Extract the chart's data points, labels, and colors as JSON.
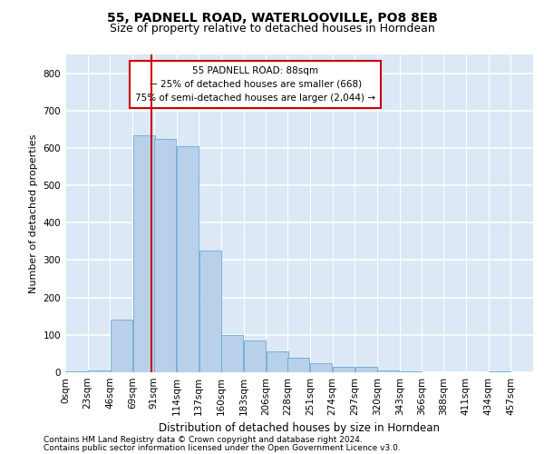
{
  "title1": "55, PADNELL ROAD, WATERLOOVILLE, PO8 8EB",
  "title2": "Size of property relative to detached houses in Horndean",
  "xlabel": "Distribution of detached houses by size in Horndean",
  "ylabel": "Number of detached properties",
  "footnote1": "Contains HM Land Registry data © Crown copyright and database right 2024.",
  "footnote2": "Contains public sector information licensed under the Open Government Licence v3.0.",
  "annotation_title": "55 PADNELL ROAD: 88sqm",
  "annotation_line1": "← 25% of detached houses are smaller (668)",
  "annotation_line2": "75% of semi-detached houses are larger (2,044) →",
  "property_size": 88,
  "bin_edges": [
    0,
    23,
    46,
    69,
    91,
    114,
    137,
    160,
    183,
    206,
    228,
    251,
    274,
    297,
    320,
    343,
    366,
    388,
    411,
    434,
    457,
    480
  ],
  "bar_heights": [
    2,
    5,
    140,
    635,
    625,
    605,
    325,
    100,
    85,
    55,
    40,
    25,
    15,
    15,
    5,
    2,
    0,
    0,
    0,
    2,
    0
  ],
  "bar_color": "#b8d0ea",
  "bar_edge_color": "#6aaad4",
  "vline_color": "#cc0000",
  "vline_x": 88,
  "ylim": [
    0,
    850
  ],
  "yticks": [
    0,
    100,
    200,
    300,
    400,
    500,
    600,
    700,
    800
  ],
  "background_color": "#dce8f5",
  "grid_color": "#ffffff",
  "fig_background": "#ffffff",
  "annotation_box_color": "#ffffff",
  "annotation_box_edge": "#cc0000",
  "title1_fontsize": 10,
  "title2_fontsize": 9,
  "xlabel_fontsize": 8.5,
  "ylabel_fontsize": 8,
  "tick_fontsize": 7.5,
  "annot_fontsize": 7.5,
  "footnote_fontsize": 6.5
}
